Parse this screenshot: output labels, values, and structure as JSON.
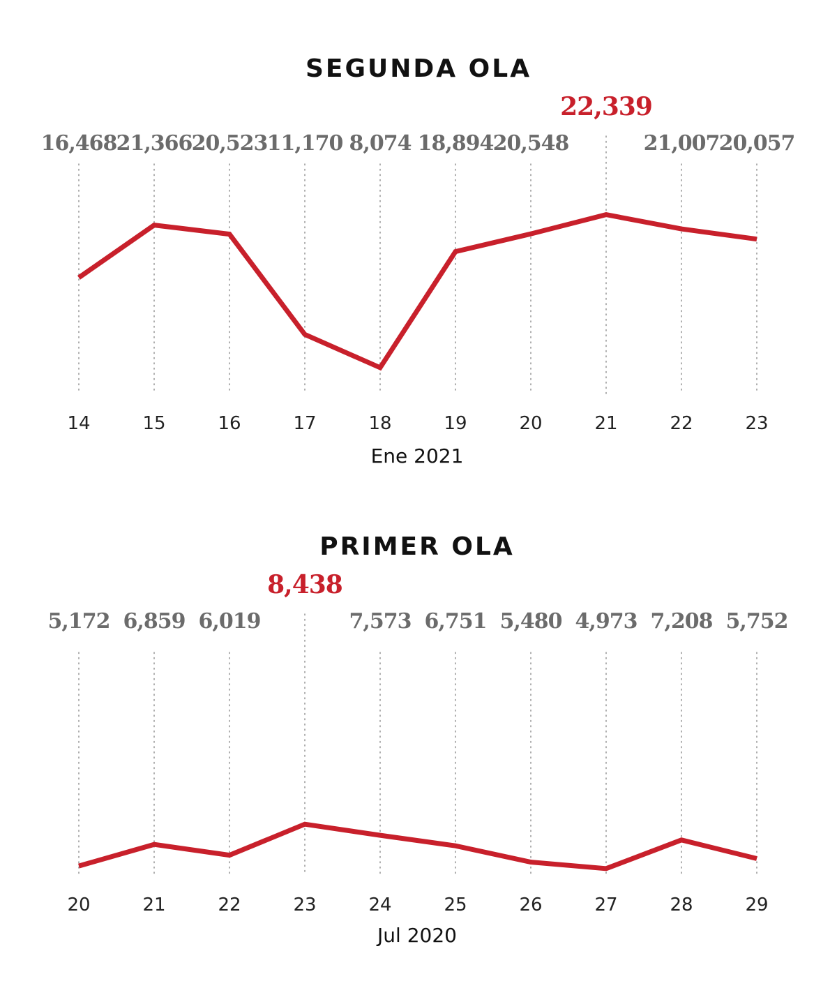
{
  "colors": {
    "line": "#c8202b",
    "peak_label": "#c8202b",
    "value_label": "#6b6b6b"
  },
  "chart_data": [
    {
      "type": "line",
      "title": "SEGUNDA OLA",
      "xlabel": "Ene 2021",
      "ylabel": "",
      "ylim": [
        0,
        28000
      ],
      "grid": false,
      "categories": [
        "14",
        "15",
        "16",
        "17",
        "18",
        "19",
        "20",
        "21",
        "22",
        "23"
      ],
      "series": [
        {
          "values": [
            16468,
            21366,
            20523,
            11170,
            8074,
            18894,
            20548,
            22339,
            21007,
            20057
          ]
        }
      ],
      "data_labels": [
        "16,468",
        "21,366",
        "20,523",
        "11,170",
        "8,074",
        "18,894",
        "20,548",
        "22,339",
        "21,007",
        "20,057"
      ],
      "highlight_index": 7
    },
    {
      "type": "line",
      "title": "PRIMER OLA",
      "xlabel": "Jul 2020",
      "ylabel": "",
      "ylim": [
        0,
        28000
      ],
      "grid": false,
      "categories": [
        "20",
        "21",
        "22",
        "23",
        "24",
        "25",
        "26",
        "27",
        "28",
        "29"
      ],
      "series": [
        {
          "values": [
            5172,
            6859,
            6019,
            8438,
            7573,
            6751,
            5480,
            4973,
            7208,
            5752
          ]
        }
      ],
      "data_labels": [
        "5,172",
        "6,859",
        "6,019",
        "8,438",
        "7,573",
        "6,751",
        "5,480",
        "4,973",
        "7,208",
        "5,752"
      ],
      "highlight_index": 3
    }
  ]
}
